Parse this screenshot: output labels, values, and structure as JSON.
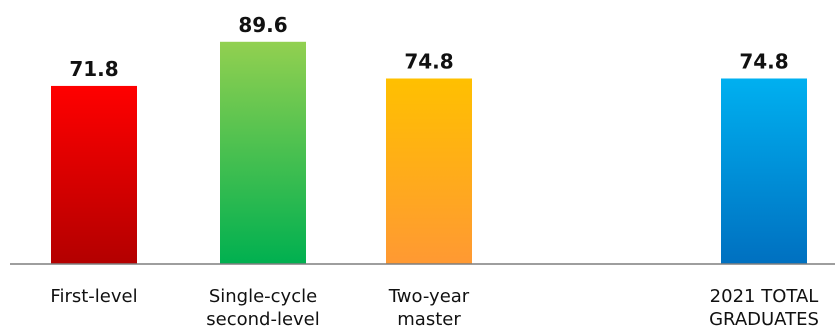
{
  "chart_data": {
    "type": "bar",
    "categories": [
      [
        "First-level"
      ],
      [
        "Single-cycle",
        "second-level"
      ],
      [
        "Two-year",
        "master"
      ],
      [
        "2021 TOTAL",
        "GRADUATES"
      ]
    ],
    "values": [
      71.8,
      89.6,
      74.8,
      74.8
    ],
    "value_labels": [
      "71.8",
      "89.6",
      "74.8",
      "74.8"
    ],
    "gap_before_last": true,
    "grid": false,
    "legend": "none",
    "bar_colors": [
      {
        "top": "#ff0000",
        "bottom": "#b30000"
      },
      {
        "top": "#92d050",
        "bottom": "#00b050"
      },
      {
        "top": "#ffc000",
        "bottom": "#ff9933"
      },
      {
        "top": "#00b0f0",
        "bottom": "#0070c0"
      }
    ],
    "axis_color": "#7f7f7f"
  }
}
